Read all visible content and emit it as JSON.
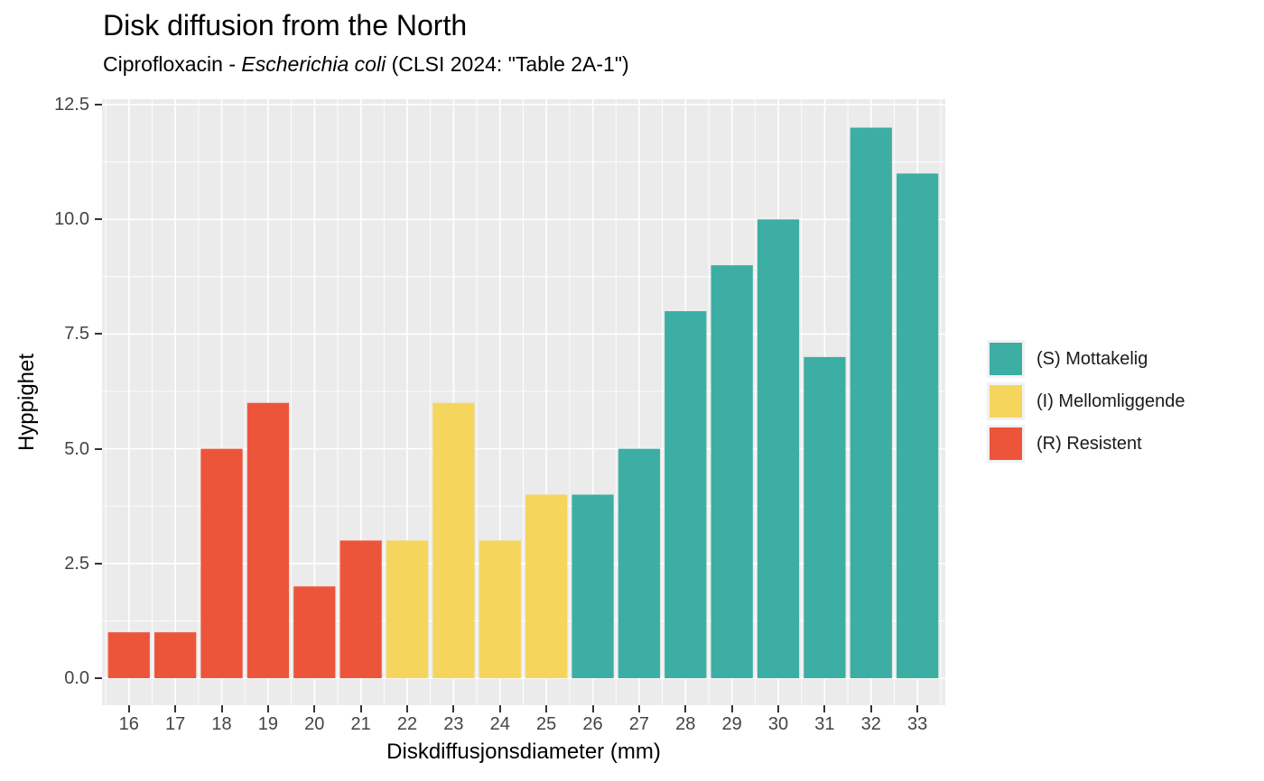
{
  "chart_data": {
    "type": "bar",
    "title": "Disk diffusion from the North",
    "subtitle_prefix": "Ciprofloxacin - ",
    "subtitle_italic": "Escherichia coli",
    "subtitle_suffix": " (CLSI 2024: \"Table 2A-1\")",
    "xlabel": "Diskdiffusjonsdiameter (mm)",
    "ylabel": "Hyppighet",
    "categories": [
      16,
      17,
      18,
      19,
      20,
      21,
      22,
      23,
      24,
      25,
      26,
      27,
      28,
      29,
      30,
      31,
      32,
      33
    ],
    "values": [
      1,
      1,
      5,
      6,
      2,
      3,
      3,
      6,
      3,
      4,
      4,
      5,
      8,
      9,
      10,
      7,
      12,
      11
    ],
    "groups": [
      "R",
      "R",
      "R",
      "R",
      "R",
      "R",
      "I",
      "I",
      "I",
      "I",
      "S",
      "S",
      "S",
      "S",
      "S",
      "S",
      "S",
      "S"
    ],
    "group_colors": {
      "S": "#3CAEA3",
      "I": "#F6D55C",
      "R": "#ED553B"
    },
    "legend": [
      {
        "key": "S",
        "label": "(S) Mottakelig"
      },
      {
        "key": "I",
        "label": "(I) Mellomliggende"
      },
      {
        "key": "R",
        "label": "(R) Resistent"
      }
    ],
    "legend_position": "right",
    "y_ticks": {
      "values": [
        0,
        2.5,
        5,
        7.5,
        10,
        12.5
      ],
      "labels": [
        "0.0",
        "2.5",
        "5.0",
        "7.5",
        "10.0",
        "12.5"
      ]
    },
    "y_minor_ticks": [
      1.25,
      3.75,
      6.25,
      8.75,
      11.25
    ],
    "ylim": [
      0,
      12.5
    ],
    "xlim": [
      16,
      33
    ],
    "bar_width": 0.9,
    "grid": true,
    "panel_background": "#EBEBEB",
    "grid_color": "#FFFFFF",
    "axis_text_color": "#444444",
    "tick_mark_color": "#333333"
  }
}
